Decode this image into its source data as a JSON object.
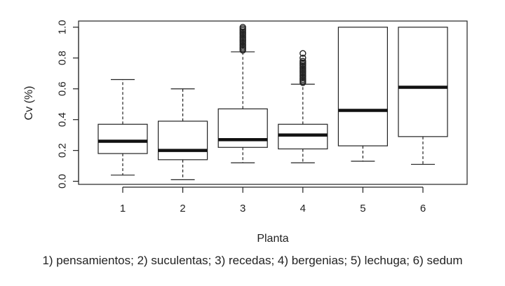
{
  "chart_data": {
    "type": "boxplot",
    "xlabel": "Planta",
    "ylabel": "Cv (%)",
    "ylim": [
      -0.02,
      1.04
    ],
    "yticks": [
      "0.0",
      "0.2",
      "0.4",
      "0.6",
      "0.8",
      "1.0"
    ],
    "categories": [
      "1",
      "2",
      "3",
      "4",
      "5",
      "6"
    ],
    "boxes": [
      {
        "label": "1",
        "whisker_low": 0.04,
        "q1": 0.18,
        "median": 0.26,
        "q3": 0.37,
        "whisker_high": 0.66,
        "outliers": []
      },
      {
        "label": "2",
        "whisker_low": 0.01,
        "q1": 0.14,
        "median": 0.2,
        "q3": 0.39,
        "whisker_high": 0.6,
        "outliers": []
      },
      {
        "label": "3",
        "whisker_low": 0.12,
        "q1": 0.22,
        "median": 0.27,
        "q3": 0.47,
        "whisker_high": 0.84,
        "outliers": [
          0.85,
          0.86,
          0.87,
          0.88,
          0.89,
          0.9,
          0.91,
          0.92,
          0.93,
          0.94,
          0.95,
          0.96,
          0.97,
          0.98,
          0.99,
          1.0
        ]
      },
      {
        "label": "4",
        "whisker_low": 0.12,
        "q1": 0.21,
        "median": 0.3,
        "q3": 0.37,
        "whisker_high": 0.63,
        "outliers": [
          0.64,
          0.65,
          0.66,
          0.67,
          0.68,
          0.69,
          0.7,
          0.71,
          0.72,
          0.73,
          0.74,
          0.75,
          0.76,
          0.77,
          0.78,
          0.8,
          0.83
        ]
      },
      {
        "label": "5",
        "whisker_low": 0.13,
        "q1": 0.23,
        "median": 0.46,
        "q3": 1.0,
        "whisker_high": 1.0,
        "outliers": []
      },
      {
        "label": "6",
        "whisker_low": 0.11,
        "q1": 0.29,
        "median": 0.61,
        "q3": 1.0,
        "whisker_high": 1.0,
        "outliers": []
      }
    ],
    "caption": "1) pensamientos; 2) suculentas; 3) recedas; 4) bergenias; 5) lechuga; 6) sedum"
  }
}
